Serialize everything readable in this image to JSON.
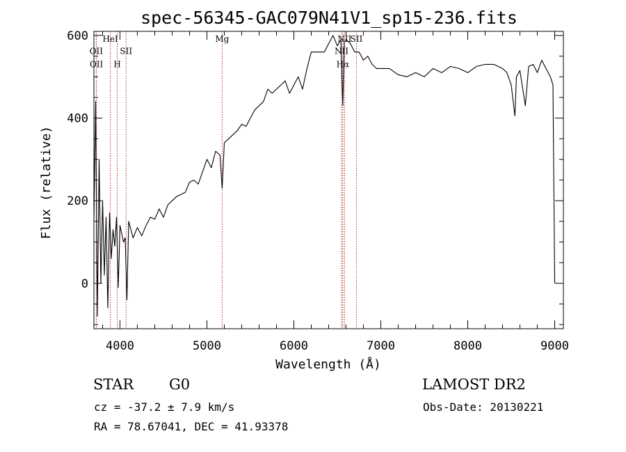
{
  "chart_data": {
    "type": "line",
    "title": "spec-56345-GAC079N41V1_sp15-236.fits",
    "xlabel": "Wavelength (Å)",
    "ylabel": "Flux (relative)",
    "xlim": [
      3700,
      9100
    ],
    "ylim": [
      -110,
      610
    ],
    "x_ticks": [
      4000,
      5000,
      6000,
      7000,
      8000,
      9000
    ],
    "y_ticks": [
      0,
      200,
      400,
      600
    ],
    "x_minor_step": 200,
    "y_minor_step": 50,
    "grid": false,
    "line_color": "#000000",
    "marker_color": "#b22222",
    "spectrum": {
      "x": [
        3700,
        3720,
        3740,
        3760,
        3780,
        3800,
        3820,
        3840,
        3860,
        3880,
        3900,
        3920,
        3940,
        3960,
        3980,
        4000,
        4020,
        4040,
        4060,
        4080,
        4100,
        4150,
        4200,
        4250,
        4300,
        4350,
        4400,
        4450,
        4500,
        4550,
        4600,
        4650,
        4700,
        4750,
        4800,
        4850,
        4900,
        4950,
        5000,
        5050,
        5100,
        5150,
        5175,
        5200,
        5250,
        5300,
        5350,
        5400,
        5450,
        5500,
        5550,
        5600,
        5650,
        5700,
        5750,
        5800,
        5850,
        5900,
        5950,
        6000,
        6050,
        6100,
        6150,
        6200,
        6250,
        6300,
        6350,
        6400,
        6450,
        6500,
        6540,
        6563,
        6580,
        6600,
        6650,
        6700,
        6750,
        6800,
        6850,
        6900,
        6950,
        7000,
        7100,
        7200,
        7300,
        7400,
        7500,
        7600,
        7700,
        7800,
        7900,
        8000,
        8100,
        8200,
        8300,
        8400,
        8450,
        8500,
        8542,
        8560,
        8600,
        8662,
        8700,
        8750,
        8800,
        8850,
        8900,
        8950,
        8980,
        9000
      ],
      "y": [
        150,
        440,
        -80,
        300,
        0,
        200,
        20,
        160,
        -60,
        170,
        60,
        130,
        90,
        160,
        -10,
        140,
        120,
        100,
        110,
        -40,
        150,
        110,
        135,
        115,
        140,
        160,
        155,
        180,
        160,
        190,
        200,
        210,
        215,
        220,
        245,
        250,
        240,
        270,
        300,
        280,
        320,
        310,
        230,
        340,
        350,
        360,
        370,
        385,
        380,
        400,
        420,
        430,
        440,
        470,
        460,
        470,
        480,
        490,
        460,
        480,
        500,
        470,
        520,
        560,
        560,
        560,
        560,
        580,
        600,
        575,
        590,
        430,
        585,
        590,
        580,
        560,
        560,
        540,
        550,
        530,
        520,
        520,
        520,
        505,
        500,
        510,
        500,
        520,
        510,
        525,
        520,
        510,
        525,
        530,
        530,
        520,
        510,
        480,
        405,
        500,
        515,
        430,
        525,
        530,
        510,
        540,
        520,
        500,
        480,
        0
      ]
    },
    "line_markers": [
      {
        "wavelength": 3727,
        "label": "OII",
        "label_y": 555
      },
      {
        "wavelength": 3729,
        "label": "OII",
        "label_y": 523
      },
      {
        "wavelength": 3889,
        "label": "HeI",
        "label_y": 585
      },
      {
        "wavelength": 3969,
        "label": "H",
        "label_y": 523
      },
      {
        "wavelength": 4070,
        "label": "SII",
        "label_y": 555
      },
      {
        "wavelength": 5175,
        "label": "Mg",
        "label_y": 585
      },
      {
        "wavelength": 6548,
        "label": "NII",
        "label_y": 555
      },
      {
        "wavelength": 6563,
        "label": "Hα",
        "label_y": 523
      },
      {
        "wavelength": 6583,
        "label": "NII",
        "label_y": 585
      },
      {
        "wavelength": 6720,
        "label": "SII",
        "label_y": 585
      }
    ]
  },
  "info": {
    "object_class": "STAR",
    "subclass": "G0",
    "redshift_text": "cz = -37.2 ± 7.9 km/s",
    "coords_text": "RA =  78.67041, DEC =  41.93378",
    "survey": "LAMOST DR2",
    "obs_date": "Obs-Date: 20130221"
  }
}
